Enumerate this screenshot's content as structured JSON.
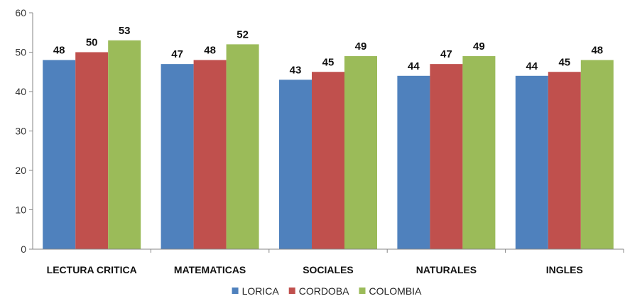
{
  "chart_data": {
    "type": "bar",
    "categories": [
      "LECTURA CRITICA",
      "MATEMATICAS",
      "SOCIALES",
      "NATURALES",
      "INGLES"
    ],
    "series": [
      {
        "name": "LORICA",
        "color": "#4f81bd",
        "values": [
          48,
          47,
          43,
          44,
          44
        ]
      },
      {
        "name": "CORDOBA",
        "color": "#c0504d",
        "values": [
          50,
          48,
          45,
          47,
          45
        ]
      },
      {
        "name": "COLOMBIA",
        "color": "#9bbb59",
        "values": [
          53,
          52,
          49,
          49,
          48
        ]
      }
    ],
    "ylim": [
      0,
      60
    ],
    "yticks": [
      0,
      10,
      20,
      30,
      40,
      50,
      60
    ],
    "grid": false,
    "legend": "bottom",
    "data_labels": true
  }
}
